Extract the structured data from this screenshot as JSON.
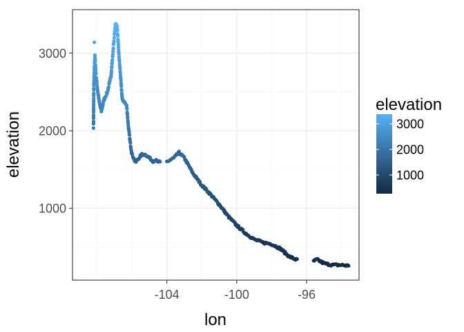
{
  "chart_data": {
    "type": "scatter",
    "title": "",
    "xlabel": "lon",
    "ylabel": "elevation",
    "xlim": [
      -109.4,
      -93.0
    ],
    "ylim": [
      75,
      3560
    ],
    "x_ticks": [
      -104,
      -100,
      -96
    ],
    "x_tick_labels": [
      "-104",
      "-100",
      "-96"
    ],
    "y_ticks": [
      1000,
      2000,
      3000
    ],
    "y_tick_labels": [
      "1000",
      "2000",
      "3000"
    ],
    "grid": true,
    "legend": {
      "title": "elevation",
      "position": "right",
      "type": "colorbar",
      "range": [
        270,
        3380
      ],
      "breaks": [
        1000,
        2000,
        3000
      ],
      "break_labels": [
        "1000",
        "2000",
        "3000"
      ],
      "color_low": "#132B43",
      "color_high": "#56B1F7"
    },
    "trace": [
      [
        -108.2,
        2050
      ],
      [
        -108.18,
        2600
      ],
      [
        -108.12,
        2980
      ],
      [
        -108.05,
        2700
      ],
      [
        -107.95,
        2500
      ],
      [
        -107.85,
        2350
      ],
      [
        -107.75,
        2250
      ],
      [
        -107.6,
        2400
      ],
      [
        -107.4,
        2500
      ],
      [
        -107.2,
        2700
      ],
      [
        -107.05,
        3100
      ],
      [
        -106.95,
        3380
      ],
      [
        -106.85,
        3350
      ],
      [
        -106.75,
        3000
      ],
      [
        -106.65,
        2700
      ],
      [
        -106.55,
        2400
      ],
      [
        -106.45,
        2380
      ],
      [
        -106.3,
        2320
      ],
      [
        -106.2,
        2050
      ],
      [
        -106.1,
        1850
      ],
      [
        -106.0,
        1700
      ],
      [
        -105.9,
        1650
      ],
      [
        -105.8,
        1590
      ],
      [
        -105.6,
        1650
      ],
      [
        -105.4,
        1700
      ],
      [
        -105.2,
        1690
      ],
      [
        -105.0,
        1650
      ],
      [
        -104.8,
        1610
      ],
      [
        -104.65,
        1620
      ],
      [
        -104.5,
        1600
      ],
      [
        -104.35,
        1590
      ],
      [
        -104.0,
        1600
      ],
      [
        -103.6,
        1650
      ],
      [
        -103.3,
        1720
      ],
      [
        -103.0,
        1650
      ],
      [
        -102.5,
        1450
      ],
      [
        -102.0,
        1300
      ],
      [
        -101.5,
        1180
      ],
      [
        -101.0,
        1050
      ],
      [
        -100.5,
        900
      ],
      [
        -100.0,
        780
      ],
      [
        -99.5,
        680
      ],
      [
        -99.0,
        600
      ],
      [
        -98.5,
        560
      ],
      [
        -98.0,
        540
      ],
      [
        -97.5,
        480
      ],
      [
        -97.0,
        380
      ],
      [
        -96.5,
        330
      ],
      [
        -96.0,
        320
      ],
      [
        -95.6,
        320
      ],
      [
        -95.4,
        340
      ],
      [
        -95.0,
        290
      ],
      [
        -94.5,
        270
      ],
      [
        -94.0,
        270
      ],
      [
        -93.6,
        260
      ]
    ],
    "gaps": [
      [
        -104.35,
        -104.0
      ],
      [
        -96.5,
        -95.6
      ]
    ],
    "outliers": [
      [
        -108.15,
        3140
      ]
    ],
    "annotations": []
  }
}
